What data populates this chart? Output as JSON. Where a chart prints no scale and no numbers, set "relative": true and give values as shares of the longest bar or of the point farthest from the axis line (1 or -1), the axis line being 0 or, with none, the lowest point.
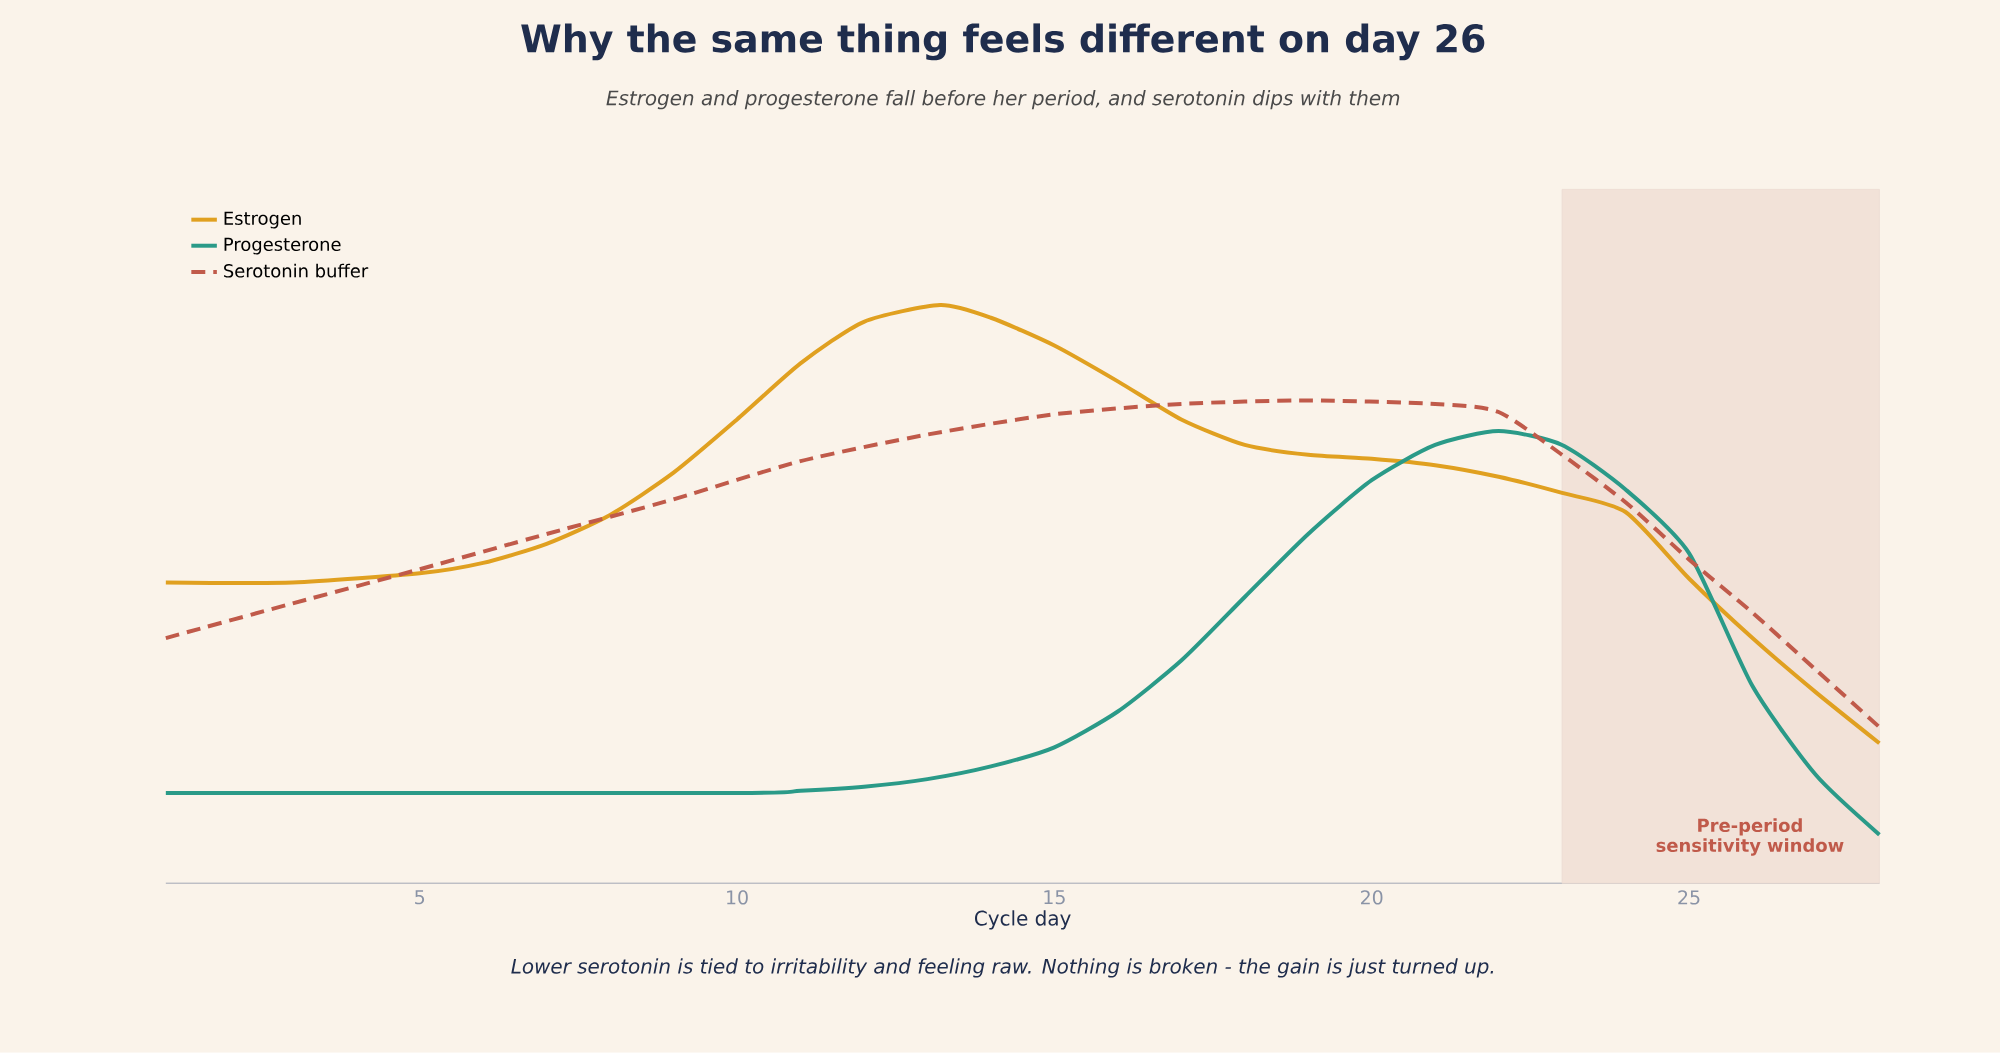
{
  "chart_data": {
    "type": "line",
    "title": "Why the same thing feels different on day 26",
    "subtitle": "Estrogen and progesterone fall before her period, and serotonin dips with them",
    "xlabel": "Cycle day",
    "relative": true,
    "xlim": [
      1,
      28
    ],
    "xticks": [
      5,
      10,
      15,
      20,
      25
    ],
    "grid": false,
    "legend": "top left",
    "marker": "none",
    "series": [
      {
        "name": "Estrogen",
        "color": "#e0a020",
        "line_style": "solid",
        "x": [
          1,
          3,
          5,
          6,
          7,
          8,
          9,
          10,
          11,
          12,
          13.2,
          14,
          15,
          16,
          17,
          18,
          19,
          20,
          21,
          22,
          23,
          24,
          25,
          26,
          27,
          28
        ],
        "values": [
          0.52,
          0.52,
          0.536,
          0.554,
          0.587,
          0.637,
          0.71,
          0.802,
          0.899,
          0.971,
          1.0,
          0.978,
          0.93,
          0.868,
          0.802,
          0.758,
          0.741,
          0.734,
          0.723,
          0.703,
          0.675,
          0.642,
          0.527,
          0.424,
          0.33,
          0.242
        ]
      },
      {
        "name": "Progesterone",
        "color": "#2a9a88",
        "line_style": "solid",
        "x": [
          1,
          10,
          11,
          12,
          13,
          14,
          15,
          16,
          17,
          18,
          19,
          20,
          21,
          22,
          23,
          24,
          25,
          26,
          27,
          28
        ],
        "values": [
          0.156,
          0.156,
          0.16,
          0.167,
          0.18,
          0.202,
          0.235,
          0.297,
          0.385,
          0.495,
          0.604,
          0.697,
          0.758,
          0.782,
          0.758,
          0.681,
          0.571,
          0.341,
          0.187,
          0.084
        ]
      },
      {
        "name": "Serotonin buffer",
        "color": "#c05a4a",
        "line_style": "dashed",
        "x": [
          1,
          3,
          5,
          7,
          9,
          11,
          13,
          15,
          17,
          19,
          21,
          22,
          23,
          24,
          25,
          26,
          27,
          28
        ],
        "values": [
          0.424,
          0.484,
          0.543,
          0.604,
          0.664,
          0.73,
          0.776,
          0.811,
          0.829,
          0.835,
          0.829,
          0.815,
          0.741,
          0.659,
          0.56,
          0.468,
          0.369,
          0.27
        ]
      }
    ],
    "bands": [
      {
        "axis": "x",
        "from": 23,
        "to": 28,
        "label": "Pre-period sensitivity window",
        "color": "#f2e2d8"
      }
    ],
    "annotations": [
      "Lower serotonin is tied to irritability and feeling raw. Nothing is broken - the gain is just turned up."
    ]
  }
}
